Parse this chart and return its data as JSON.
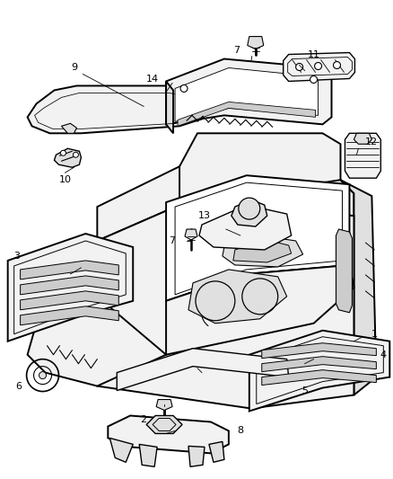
{
  "bg_color": "#ffffff",
  "line_color": "#000000",
  "fig_width": 4.38,
  "fig_height": 5.33,
  "dpi": 100,
  "label_fs": 8,
  "lw_main": 1.4,
  "lw_thin": 0.8,
  "lw_med": 1.0,
  "parts_fill": "#f2f2f2",
  "parts_shadow": "#e0e0e0",
  "parts_dark": "#cccccc"
}
